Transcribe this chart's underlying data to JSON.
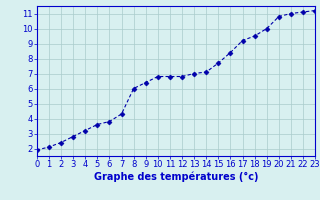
{
  "x": [
    0,
    1,
    2,
    3,
    4,
    5,
    6,
    7,
    8,
    9,
    10,
    11,
    12,
    13,
    14,
    15,
    16,
    17,
    18,
    19,
    20,
    21,
    22,
    23
  ],
  "y": [
    1.9,
    2.1,
    2.4,
    2.8,
    3.2,
    3.6,
    3.8,
    4.3,
    6.0,
    6.4,
    6.8,
    6.8,
    6.8,
    7.0,
    7.1,
    7.7,
    8.4,
    9.2,
    9.5,
    10.0,
    10.8,
    11.0,
    11.1,
    11.2
  ],
  "xlim": [
    0,
    23
  ],
  "ylim": [
    1.5,
    11.5
  ],
  "xticks": [
    0,
    1,
    2,
    3,
    4,
    5,
    6,
    7,
    8,
    9,
    10,
    11,
    12,
    13,
    14,
    15,
    16,
    17,
    18,
    19,
    20,
    21,
    22,
    23
  ],
  "yticks": [
    2,
    3,
    4,
    5,
    6,
    7,
    8,
    9,
    10,
    11
  ],
  "xlabel": "Graphe des températures (°c)",
  "line_color": "#0000aa",
  "marker": "D",
  "marker_size": 2.5,
  "bg_color": "#d8f0f0",
  "grid_color": "#aacccc",
  "axis_color": "#0000cc",
  "xlabel_fontsize": 7.0,
  "tick_fontsize": 6.0
}
